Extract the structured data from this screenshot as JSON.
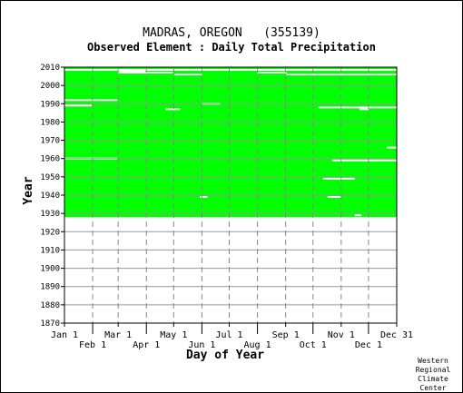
{
  "chart_data": {
    "type": "heatmap",
    "title": "MADRAS, OREGON   (355139)",
    "subtitle": "Observed Element : Daily Total Precipitation",
    "xlabel": "Day of Year",
    "ylabel": "Year",
    "ylim": [
      1870,
      2010
    ],
    "y_ticks": [
      1870,
      1880,
      1890,
      1900,
      1910,
      1920,
      1930,
      1940,
      1950,
      1960,
      1970,
      1980,
      1990,
      2000,
      2010
    ],
    "x_ticks_top_row": [
      "Jan 1",
      "Mar 1",
      "May 1",
      "Jul 1",
      "Sep 1",
      "Nov 1",
      "Dec 31"
    ],
    "x_ticks_bottom_row": [
      "Feb 1",
      "Apr 1",
      "Jun 1",
      "Aug 1",
      "Oct 1",
      "Dec 1"
    ],
    "x_tick_days": [
      1,
      32,
      60,
      91,
      121,
      152,
      182,
      213,
      244,
      274,
      305,
      335,
      366
    ],
    "grid": true,
    "data_color": "#00ff00",
    "missing_color": "#ffffff",
    "data_period": {
      "start_year": 1928,
      "end_year": 2010
    },
    "missing_segments": [
      {
        "year": 2008.5,
        "day_start": 1,
        "day_end": 366
      },
      {
        "year": 2008,
        "day_start": 60,
        "day_end": 90
      },
      {
        "year": 2007,
        "day_start": 60,
        "day_end": 120
      },
      {
        "year": 2007,
        "day_start": 213,
        "day_end": 245
      },
      {
        "year": 2006,
        "day_start": 245,
        "day_end": 366
      },
      {
        "year": 2006,
        "day_start": 122,
        "day_end": 152
      },
      {
        "year": 1992,
        "day_start": 1,
        "day_end": 31
      },
      {
        "year": 1992,
        "day_start": 32,
        "day_end": 59
      },
      {
        "year": 1989,
        "day_start": 1,
        "day_end": 31
      },
      {
        "year": 1988,
        "day_start": 280,
        "day_end": 366
      },
      {
        "year": 1990,
        "day_start": 152,
        "day_end": 172
      },
      {
        "year": 1987,
        "day_start": 112,
        "day_end": 128
      },
      {
        "year": 1987,
        "day_start": 325,
        "day_end": 335
      },
      {
        "year": 1960,
        "day_start": 1,
        "day_end": 59
      },
      {
        "year": 1959,
        "day_start": 295,
        "day_end": 366
      },
      {
        "year": 1966,
        "day_start": 355,
        "day_end": 366
      },
      {
        "year": 1949,
        "day_start": 285,
        "day_end": 320
      },
      {
        "year": 1939,
        "day_start": 150,
        "day_end": 158
      },
      {
        "year": 1939,
        "day_start": 290,
        "day_end": 305
      },
      {
        "year": 1929,
        "day_start": 320,
        "day_end": 327
      }
    ]
  },
  "credit": [
    "Western",
    "Regional",
    "Climate",
    "Center"
  ]
}
